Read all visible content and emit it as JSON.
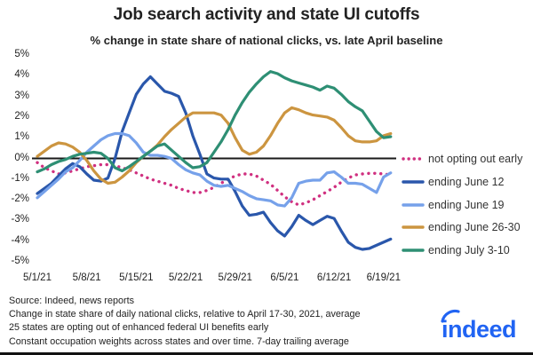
{
  "title": "Job search activity and state UI cutoffs",
  "subtitle": "% change in state share of national clicks, vs. late April baseline",
  "footer": {
    "lines": [
      "Source: Indeed, news reports",
      "Change in state share of daily national clicks, relative to April 17-30, 2021, average",
      "25 states are opting out of enhanced federal UI benefits early",
      "Constant occupation weights across states and over time. 7-day trailing average"
    ]
  },
  "logo": {
    "text": "indeed",
    "color": "#2164f3"
  },
  "chart_data": {
    "type": "line",
    "title": "Job search activity and state UI cutoffs",
    "subtitle": "% change in state share of national clicks, vs. late April baseline",
    "xlabel": "",
    "ylabel": "% change in state share of national clicks",
    "ylim": [
      -5,
      5
    ],
    "grid": false,
    "zero_line": true,
    "zero_line_color": "#1a1a1a",
    "legend_position": "right",
    "y_ticks": [
      "5%",
      "4%",
      "3%",
      "2%",
      "1%",
      "0%",
      "-1%",
      "-2%",
      "-3%",
      "-4%",
      "-5%"
    ],
    "y_tick_values": [
      5,
      4,
      3,
      2,
      1,
      0,
      -1,
      -2,
      -3,
      -4,
      -5
    ],
    "x_tick_labels": [
      "5/1/21",
      "5/8/21",
      "5/15/21",
      "5/22/21",
      "5/29/21",
      "6/5/21",
      "6/12/21",
      "6/19/21"
    ],
    "x_tick_days": [
      0,
      7,
      14,
      21,
      28,
      35,
      42,
      49
    ],
    "x_unit": "days since 5/1/21, one point per day, series span 5/1/21 - 6/20/21",
    "series": [
      {
        "name": "not opting out early",
        "color": "#d03080",
        "style": "dotted",
        "values": [
          -0.2,
          -0.45,
          -0.6,
          -0.75,
          -0.7,
          -0.6,
          -0.5,
          -0.4,
          -0.35,
          -0.3,
          -0.3,
          -0.35,
          -0.45,
          -0.55,
          -0.7,
          -0.85,
          -1.0,
          -1.1,
          -1.2,
          -1.3,
          -1.45,
          -1.55,
          -1.65,
          -1.65,
          -1.55,
          -1.4,
          -1.2,
          -1.0,
          -0.85,
          -0.75,
          -0.75,
          -0.85,
          -1.05,
          -1.25,
          -1.55,
          -1.85,
          -2.1,
          -2.25,
          -2.15,
          -2.0,
          -1.8,
          -1.6,
          -1.4,
          -1.15,
          -0.95,
          -0.8,
          -0.75,
          -0.72,
          -0.72,
          -0.75,
          -0.8
        ]
      },
      {
        "name": "ending June 12",
        "color": "#2a57ab",
        "style": "solid",
        "values": [
          -1.7,
          -1.45,
          -1.2,
          -0.85,
          -0.5,
          -0.25,
          -0.4,
          -0.75,
          -1.05,
          -1.1,
          -0.95,
          0.0,
          1.3,
          2.2,
          3.1,
          3.6,
          3.95,
          3.6,
          3.25,
          3.15,
          3.0,
          2.2,
          1.1,
          0.2,
          -0.75,
          -0.95,
          -1.0,
          -1.0,
          -1.6,
          -2.3,
          -2.75,
          -2.7,
          -2.6,
          -3.1,
          -3.5,
          -3.75,
          -3.3,
          -2.75,
          -3.0,
          -3.2,
          -3.0,
          -2.8,
          -2.9,
          -3.5,
          -4.05,
          -4.3,
          -4.4,
          -4.35,
          -4.2,
          -4.05,
          -3.9
        ]
      },
      {
        "name": "ending June 19",
        "color": "#76a1ea",
        "style": "solid",
        "values": [
          -1.9,
          -1.6,
          -1.3,
          -1.0,
          -0.65,
          -0.45,
          -0.1,
          0.3,
          0.6,
          0.9,
          1.1,
          1.2,
          1.2,
          1.1,
          0.75,
          0.3,
          0.15,
          0.15,
          0.1,
          0.0,
          -0.3,
          -0.55,
          -0.7,
          -0.8,
          -1.1,
          -1.3,
          -1.35,
          -1.3,
          -1.45,
          -1.6,
          -1.8,
          -1.95,
          -2.0,
          -2.05,
          -2.25,
          -2.3,
          -1.9,
          -1.2,
          -1.1,
          -1.05,
          -1.05,
          -0.7,
          -0.65,
          -0.9,
          -1.2,
          -1.2,
          -1.25,
          -1.45,
          -1.65,
          -0.9,
          -0.7
        ]
      },
      {
        "name": "ending June 26-30",
        "color": "#cc9540",
        "style": "solid",
        "values": [
          0.1,
          0.35,
          0.6,
          0.75,
          0.7,
          0.55,
          0.3,
          -0.1,
          -0.6,
          -1.0,
          -1.2,
          -1.15,
          -0.9,
          -0.6,
          -0.2,
          0.1,
          0.35,
          0.65,
          1.05,
          1.4,
          1.7,
          2.0,
          2.2,
          2.2,
          2.2,
          2.2,
          2.1,
          1.7,
          1.0,
          0.4,
          0.2,
          0.3,
          0.6,
          1.1,
          1.7,
          2.2,
          2.45,
          2.35,
          2.2,
          2.1,
          2.05,
          2.0,
          1.85,
          1.5,
          1.1,
          0.85,
          0.8,
          0.8,
          0.85,
          1.1,
          1.2
        ]
      },
      {
        "name": "ending July 3-10",
        "color": "#2e8f74",
        "style": "solid",
        "values": [
          -0.65,
          -0.5,
          -0.3,
          -0.15,
          -0.05,
          0.1,
          0.2,
          0.25,
          0.3,
          0.25,
          0.0,
          -0.45,
          -0.6,
          -0.4,
          -0.15,
          0.1,
          0.35,
          0.6,
          0.7,
          0.4,
          0.1,
          -0.2,
          -0.45,
          -0.4,
          -0.2,
          0.3,
          0.8,
          1.4,
          2.1,
          2.7,
          3.2,
          3.6,
          3.95,
          4.2,
          4.1,
          3.9,
          3.75,
          3.65,
          3.55,
          3.45,
          3.3,
          3.5,
          3.4,
          3.1,
          2.75,
          2.5,
          2.3,
          1.8,
          1.3,
          1.0,
          1.05
        ]
      }
    ]
  }
}
